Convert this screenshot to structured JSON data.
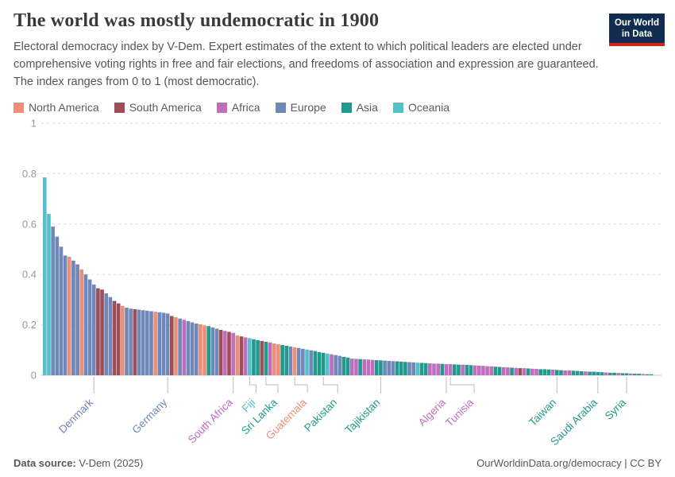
{
  "header": {
    "title": "The world was mostly undemocratic in 1900",
    "subtitle": "Electoral democracy index by V-Dem. Expert estimates of the extent to which political leaders are elected under comprehensive voting rights in free and fair elections, and freedoms of association and expression are guaranteed. The index ranges from 0 to 1 (most democratic).",
    "logo": {
      "line1": "Our World",
      "line2": "in Data",
      "bg_color": "#102d50",
      "accent_color": "#ce261c"
    }
  },
  "legend": {
    "items": [
      {
        "label": "North America",
        "code": "N"
      },
      {
        "label": "South America",
        "code": "S"
      },
      {
        "label": "Africa",
        "code": "F"
      },
      {
        "label": "Europe",
        "code": "E"
      },
      {
        "label": "Asia",
        "code": "A"
      },
      {
        "label": "Oceania",
        "code": "O"
      }
    ]
  },
  "chart_data": {
    "type": "bar",
    "title": "Electoral democracy index, 1900",
    "ylabel": "",
    "ylim": [
      0,
      1
    ],
    "yticks": [
      0,
      0.2,
      0.4,
      0.6,
      0.8,
      1
    ],
    "ytick_labels": [
      "0",
      "0.2",
      "0.4",
      "0.6",
      "0.8",
      "1"
    ],
    "grid": "dashed-horizontal",
    "legend_position": "top",
    "region_names": {
      "N": "North America",
      "S": "South America",
      "F": "Africa",
      "E": "Europe",
      "A": "Asia",
      "O": "Oceania"
    },
    "region_colors": {
      "N": "#EC8F79",
      "S": "#9D4E59",
      "F": "#BE6EBC",
      "E": "#7088B8",
      "A": "#21998C",
      "O": "#55BFCA"
    },
    "values": [
      0.785,
      0.64,
      0.59,
      0.55,
      0.51,
      0.475,
      0.47,
      0.455,
      0.44,
      0.42,
      0.4,
      0.38,
      0.36,
      0.345,
      0.34,
      0.325,
      0.31,
      0.295,
      0.285,
      0.275,
      0.268,
      0.264,
      0.262,
      0.26,
      0.258,
      0.256,
      0.254,
      0.252,
      0.25,
      0.248,
      0.245,
      0.235,
      0.23,
      0.225,
      0.22,
      0.215,
      0.21,
      0.205,
      0.202,
      0.198,
      0.195,
      0.19,
      0.185,
      0.18,
      0.176,
      0.172,
      0.168,
      0.158,
      0.154,
      0.15,
      0.147,
      0.143,
      0.139,
      0.136,
      0.133,
      0.13,
      0.126,
      0.123,
      0.12,
      0.117,
      0.114,
      0.111,
      0.108,
      0.105,
      0.102,
      0.099,
      0.096,
      0.092,
      0.089,
      0.086,
      0.083,
      0.08,
      0.077,
      0.073,
      0.07,
      0.066,
      0.065,
      0.064,
      0.063,
      0.062,
      0.061,
      0.06,
      0.059,
      0.058,
      0.057,
      0.056,
      0.055,
      0.054,
      0.053,
      0.052,
      0.051,
      0.05,
      0.049,
      0.048,
      0.047,
      0.046,
      0.046,
      0.045,
      0.044,
      0.044,
      0.043,
      0.042,
      0.042,
      0.041,
      0.04,
      0.039,
      0.038,
      0.037,
      0.036,
      0.035,
      0.034,
      0.033,
      0.032,
      0.031,
      0.03,
      0.029,
      0.028,
      0.028,
      0.027,
      0.026,
      0.025,
      0.024,
      0.024,
      0.023,
      0.022,
      0.021,
      0.02,
      0.019,
      0.019,
      0.018,
      0.017,
      0.016,
      0.015,
      0.014,
      0.014,
      0.013,
      0.012,
      0.011,
      0.01,
      0.01,
      0.009,
      0.008,
      0.008,
      0.007,
      0.006,
      0.006,
      0.005,
      0.004,
      0.004
    ],
    "regions_seq": "OOEEEENEENEEESSEESSNEESEEEENEEESNEFEEENNAEESFSFNSFOAASAFNNAAENEEOEAAAOFEEAAFFAFFFAAEEEAAAEEOAAFFFAFFAAFAAFFFFFAAFFAFSFAFFAAAFAAFFAAAFAAAAFAAFAAFAAFAA",
    "labeled_countries": [
      {
        "name": "Denmark",
        "index": 12,
        "dx": 0
      },
      {
        "name": "Germany",
        "index": 30,
        "dx": 0
      },
      {
        "name": "South Africa",
        "index": 46,
        "dx": 0
      },
      {
        "name": "Fiji",
        "index": 50,
        "dx": 8
      },
      {
        "name": "Sri Lanka",
        "index": 54,
        "dx": 15
      },
      {
        "name": "Guatemala",
        "index": 61,
        "dx": 16
      },
      {
        "name": "Pakistan",
        "index": 68,
        "dx": 18
      },
      {
        "name": "Tajikistan",
        "index": 82,
        "dx": 0
      },
      {
        "name": "Algeria",
        "index": 98,
        "dx": 0
      },
      {
        "name": "Tunisia",
        "index": 99,
        "dx": 30
      },
      {
        "name": "Taiwan",
        "index": 125,
        "dx": 0
      },
      {
        "name": "Saudi Arabia",
        "index": 135,
        "dx": 0
      },
      {
        "name": "Syria",
        "index": 142,
        "dx": 0
      }
    ]
  },
  "footer": {
    "source_label": "Data source:",
    "source_value": "V-Dem (2025)",
    "right": "OurWorldinData.org/democracy | CC BY"
  }
}
